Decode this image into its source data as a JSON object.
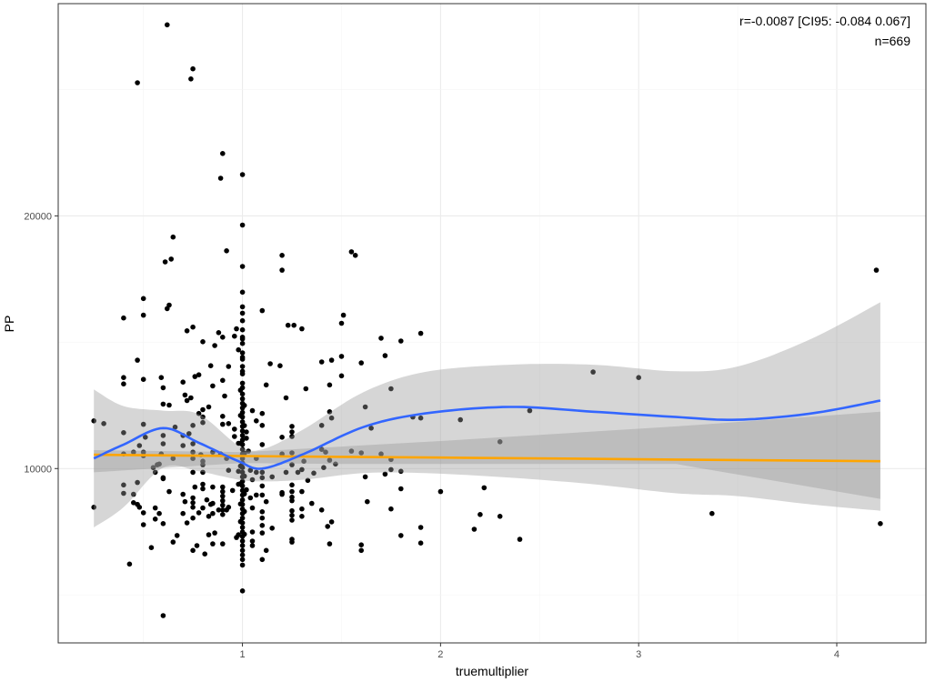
{
  "chart_data": {
    "type": "scatter",
    "xlabel": "truemultiplier",
    "ylabel": "PP",
    "xlim": [
      0.07,
      4.45
    ],
    "ylim": [
      3100,
      28400
    ],
    "x_ticks": [
      1,
      2,
      3,
      4
    ],
    "x_tick_labels": [
      "1",
      "2",
      "3",
      "4"
    ],
    "y_ticks": [
      10000,
      20000
    ],
    "y_tick_labels": [
      "10000",
      "20000"
    ],
    "grid": true,
    "annotations": [
      "r=-0.0087 [CI95: -0.084 0.067]",
      "n=669"
    ],
    "colors": {
      "points": "#000000",
      "loess": "#3366FF",
      "linear": "#FFA500",
      "ribbon": "#999999"
    },
    "points": [
      [
        0.62,
        27560
      ],
      [
        0.75,
        25820
      ],
      [
        0.74,
        25420
      ],
      [
        0.47,
        25270
      ],
      [
        0.9,
        22470
      ],
      [
        0.89,
        21490
      ],
      [
        1.0,
        21635
      ],
      [
        1.0,
        19635
      ],
      [
        0.65,
        19160
      ],
      [
        0.92,
        18620
      ],
      [
        0.61,
        18180
      ],
      [
        0.64,
        18290
      ],
      [
        1.0,
        18000
      ],
      [
        1.0,
        16980
      ],
      [
        0.5,
        16730
      ],
      [
        1.0,
        16400
      ],
      [
        0.63,
        16470
      ],
      [
        0.62,
        16330
      ],
      [
        1.2,
        18440
      ],
      [
        1.2,
        17850
      ],
      [
        1.55,
        18580
      ],
      [
        1.57,
        18440
      ],
      [
        1.1,
        16250
      ],
      [
        1.23,
        15670
      ],
      [
        1.26,
        15670
      ],
      [
        1.3,
        15530
      ],
      [
        1.51,
        16070
      ],
      [
        1.5,
        15750
      ],
      [
        1.7,
        15160
      ],
      [
        1.8,
        15050
      ],
      [
        1.9,
        15350
      ],
      [
        1.72,
        14470
      ],
      [
        1.14,
        14150
      ],
      [
        1.19,
        14070
      ],
      [
        1.4,
        14220
      ],
      [
        1.45,
        14290
      ],
      [
        1.5,
        14440
      ],
      [
        1.6,
        14180
      ],
      [
        1.5,
        13670
      ],
      [
        1.12,
        13310
      ],
      [
        1.32,
        13160
      ],
      [
        1.44,
        13310
      ],
      [
        1.22,
        12800
      ],
      [
        1.75,
        13160
      ],
      [
        1.62,
        12440
      ],
      [
        1.05,
        12290
      ],
      [
        1.1,
        12180
      ],
      [
        0.4,
        15960
      ],
      [
        0.5,
        16070
      ],
      [
        0.72,
        15450
      ],
      [
        0.75,
        15600
      ],
      [
        0.88,
        15380
      ],
      [
        0.9,
        15200
      ],
      [
        0.8,
        15020
      ],
      [
        0.86,
        14870
      ],
      [
        0.96,
        15240
      ],
      [
        0.97,
        15530
      ],
      [
        0.47,
        14290
      ],
      [
        0.84,
        14070
      ],
      [
        0.93,
        14040
      ],
      [
        0.4,
        13600
      ],
      [
        0.4,
        13350
      ],
      [
        0.5,
        13530
      ],
      [
        0.59,
        13600
      ],
      [
        0.6,
        13200
      ],
      [
        0.7,
        13420
      ],
      [
        0.76,
        13640
      ],
      [
        0.78,
        13710
      ],
      [
        0.85,
        13270
      ],
      [
        0.9,
        13490
      ],
      [
        0.71,
        12910
      ],
      [
        0.74,
        12800
      ],
      [
        0.72,
        12690
      ],
      [
        0.91,
        12870
      ],
      [
        0.6,
        12550
      ],
      [
        0.63,
        12510
      ],
      [
        0.8,
        12330
      ],
      [
        0.78,
        12180
      ],
      [
        0.83,
        12440
      ],
      [
        0.8,
        12040
      ],
      [
        0.8,
        11820
      ],
      [
        0.25,
        11890
      ],
      [
        0.3,
        11780
      ],
      [
        0.9,
        12070
      ],
      [
        0.9,
        11750
      ],
      [
        0.93,
        11780
      ],
      [
        0.5,
        11750
      ],
      [
        0.75,
        11710
      ],
      [
        0.4,
        11420
      ],
      [
        0.51,
        11240
      ],
      [
        0.6,
        11310
      ],
      [
        0.6,
        10980
      ],
      [
        0.66,
        11640
      ],
      [
        0.7,
        11310
      ],
      [
        0.73,
        11380
      ],
      [
        0.7,
        10910
      ],
      [
        0.75,
        10980
      ],
      [
        0.48,
        10910
      ],
      [
        0.4,
        10580
      ],
      [
        0.45,
        10650
      ],
      [
        0.5,
        10650
      ],
      [
        0.5,
        10510
      ],
      [
        0.59,
        10580
      ],
      [
        0.65,
        10400
      ],
      [
        0.75,
        10650
      ],
      [
        0.75,
        10400
      ],
      [
        0.79,
        10550
      ],
      [
        0.8,
        10290
      ],
      [
        0.85,
        10650
      ],
      [
        0.89,
        10580
      ],
      [
        0.92,
        10400
      ],
      [
        0.96,
        11560
      ],
      [
        0.96,
        11270
      ],
      [
        0.8,
        10150
      ],
      [
        0.8,
        9850
      ],
      [
        0.75,
        9850
      ],
      [
        0.55,
        10040
      ],
      [
        0.57,
        10150
      ],
      [
        0.58,
        10180
      ],
      [
        0.56,
        9850
      ],
      [
        0.6,
        9640
      ],
      [
        0.98,
        9890
      ],
      [
        0.93,
        9930
      ],
      [
        0.4,
        9350
      ],
      [
        0.4,
        9020
      ],
      [
        0.47,
        9450
      ],
      [
        0.45,
        8980
      ],
      [
        0.45,
        8650
      ],
      [
        0.47,
        8580
      ],
      [
        0.48,
        8470
      ],
      [
        0.5,
        8250
      ],
      [
        0.5,
        7780
      ],
      [
        0.56,
        8440
      ],
      [
        0.56,
        8000
      ],
      [
        0.58,
        8220
      ],
      [
        0.6,
        7820
      ],
      [
        0.6,
        9600
      ],
      [
        0.63,
        9090
      ],
      [
        0.7,
        8980
      ],
      [
        0.71,
        8690
      ],
      [
        0.7,
        8220
      ],
      [
        0.72,
        7850
      ],
      [
        0.75,
        8840
      ],
      [
        0.75,
        8650
      ],
      [
        0.75,
        8470
      ],
      [
        0.75,
        8040
      ],
      [
        0.76,
        9270
      ],
      [
        0.8,
        9380
      ],
      [
        0.8,
        9200
      ],
      [
        0.85,
        9270
      ],
      [
        0.82,
        8760
      ],
      [
        0.84,
        8580
      ],
      [
        0.85,
        8620
      ],
      [
        0.8,
        8440
      ],
      [
        0.78,
        8250
      ],
      [
        0.83,
        8110
      ],
      [
        0.85,
        8220
      ],
      [
        0.9,
        9270
      ],
      [
        0.9,
        9090
      ],
      [
        0.9,
        8910
      ],
      [
        0.9,
        8730
      ],
      [
        0.9,
        8550
      ],
      [
        0.9,
        8360
      ],
      [
        0.9,
        8180
      ],
      [
        0.88,
        8360
      ],
      [
        0.92,
        8360
      ],
      [
        0.93,
        8470
      ],
      [
        0.95,
        9130
      ],
      [
        0.98,
        9380
      ],
      [
        0.67,
        7350
      ],
      [
        0.65,
        7090
      ],
      [
        0.54,
        6870
      ],
      [
        0.75,
        6760
      ],
      [
        0.77,
        6950
      ],
      [
        0.81,
        6620
      ],
      [
        0.83,
        7380
      ],
      [
        0.86,
        7450
      ],
      [
        0.85,
        7020
      ],
      [
        0.9,
        7020
      ],
      [
        0.25,
        8470
      ],
      [
        0.43,
        6220
      ],
      [
        0.6,
        4180
      ],
      [
        1.0,
        5160
      ],
      [
        1.0,
        6180
      ],
      [
        0.97,
        7270
      ],
      [
        0.98,
        7380
      ],
      [
        1.44,
        12250
      ],
      [
        1.45,
        12000
      ],
      [
        1.07,
        11890
      ],
      [
        1.1,
        11710
      ],
      [
        1.25,
        11670
      ],
      [
        1.25,
        11450
      ],
      [
        1.25,
        11270
      ],
      [
        1.2,
        11240
      ],
      [
        1.4,
        11710
      ],
      [
        1.65,
        11600
      ],
      [
        1.86,
        12040
      ],
      [
        1.9,
        12000
      ],
      [
        2.1,
        11930
      ],
      [
        1.02,
        11450
      ],
      [
        1.02,
        11200
      ],
      [
        1.1,
        10950
      ],
      [
        1.03,
        10690
      ],
      [
        1.2,
        10580
      ],
      [
        1.25,
        10620
      ],
      [
        1.4,
        10760
      ],
      [
        1.42,
        10650
      ],
      [
        1.55,
        10690
      ],
      [
        1.6,
        10620
      ],
      [
        1.7,
        10580
      ],
      [
        1.07,
        10400
      ],
      [
        1.75,
        10360
      ],
      [
        1.31,
        10290
      ],
      [
        1.25,
        10150
      ],
      [
        1.44,
        10330
      ],
      [
        1.47,
        10180
      ],
      [
        1.04,
        9930
      ],
      [
        1.07,
        9850
      ],
      [
        1.1,
        9850
      ],
      [
        1.22,
        9850
      ],
      [
        1.28,
        9850
      ],
      [
        1.3,
        9960
      ],
      [
        1.41,
        10040
      ],
      [
        1.15,
        9670
      ],
      [
        1.1,
        9640
      ],
      [
        1.36,
        9820
      ],
      [
        1.05,
        9560
      ],
      [
        1.33,
        9530
      ],
      [
        1.25,
        9350
      ],
      [
        1.62,
        9670
      ],
      [
        1.72,
        9780
      ],
      [
        1.75,
        9960
      ],
      [
        1.8,
        9890
      ],
      [
        1.8,
        9200
      ],
      [
        2.0,
        9090
      ],
      [
        1.1,
        9310
      ],
      [
        1.02,
        9160
      ],
      [
        1.2,
        9050
      ],
      [
        1.2,
        8980
      ],
      [
        1.07,
        8950
      ],
      [
        1.1,
        8950
      ],
      [
        1.25,
        9090
      ],
      [
        1.25,
        8870
      ],
      [
        1.25,
        8730
      ],
      [
        1.3,
        9090
      ],
      [
        1.04,
        8840
      ],
      [
        1.12,
        8690
      ],
      [
        1.35,
        8620
      ],
      [
        1.63,
        8690
      ],
      [
        1.75,
        8400
      ],
      [
        1.05,
        8440
      ],
      [
        1.1,
        8290
      ],
      [
        1.1,
        8040
      ],
      [
        1.1,
        7750
      ],
      [
        1.1,
        7450
      ],
      [
        1.25,
        8330
      ],
      [
        1.25,
        8150
      ],
      [
        1.25,
        7960
      ],
      [
        1.3,
        8400
      ],
      [
        1.3,
        8110
      ],
      [
        1.4,
        8360
      ],
      [
        1.15,
        7640
      ],
      [
        1.43,
        7710
      ],
      [
        1.45,
        7890
      ],
      [
        1.05,
        7490
      ],
      [
        1.05,
        7130
      ],
      [
        1.05,
        6950
      ],
      [
        1.25,
        7200
      ],
      [
        1.25,
        7090
      ],
      [
        1.44,
        7020
      ],
      [
        1.6,
        6980
      ],
      [
        1.6,
        6760
      ],
      [
        1.8,
        7350
      ],
      [
        1.9,
        7670
      ],
      [
        1.9,
        7050
      ],
      [
        1.12,
        6760
      ],
      [
        1.1,
        6400
      ],
      [
        2.77,
        13820
      ],
      [
        3.0,
        13600
      ],
      [
        2.45,
        12290
      ],
      [
        2.3,
        11060
      ],
      [
        2.22,
        9240
      ],
      [
        2.2,
        8180
      ],
      [
        2.3,
        8110
      ],
      [
        2.17,
        7600
      ],
      [
        2.4,
        7200
      ],
      [
        4.2,
        17850
      ],
      [
        3.37,
        8220
      ],
      [
        4.22,
        7820
      ],
      [
        1.0,
        16150
      ],
      [
        1.0,
        15850
      ],
      [
        1.0,
        15490
      ],
      [
        1.0,
        15200
      ],
      [
        1.0,
        15130
      ],
      [
        1.0,
        14950
      ],
      [
        1.0,
        14580
      ],
      [
        1.0,
        14400
      ],
      [
        1.0,
        14330
      ],
      [
        1.0,
        14040
      ],
      [
        1.0,
        13850
      ],
      [
        1.0,
        13750
      ],
      [
        1.0,
        13380
      ],
      [
        1.0,
        13200
      ],
      [
        1.0,
        12950
      ],
      [
        1.0,
        12760
      ],
      [
        1.0,
        12580
      ],
      [
        1.0,
        12400
      ],
      [
        1.0,
        12220
      ],
      [
        1.0,
        12040
      ],
      [
        1.0,
        11850
      ],
      [
        1.0,
        11670
      ],
      [
        1.0,
        11490
      ],
      [
        1.0,
        11310
      ],
      [
        1.0,
        11130
      ],
      [
        1.0,
        10950
      ],
      [
        1.0,
        10760
      ],
      [
        1.0,
        10580
      ],
      [
        1.0,
        10400
      ],
      [
        1.0,
        10220
      ],
      [
        1.0,
        10040
      ],
      [
        1.0,
        9850
      ],
      [
        1.0,
        9670
      ],
      [
        1.0,
        9490
      ],
      [
        1.0,
        9310
      ],
      [
        1.0,
        9130
      ],
      [
        1.0,
        8950
      ],
      [
        1.0,
        8760
      ],
      [
        1.0,
        8580
      ],
      [
        1.0,
        8400
      ],
      [
        1.0,
        8220
      ],
      [
        1.0,
        8040
      ],
      [
        1.0,
        7850
      ],
      [
        1.0,
        7670
      ],
      [
        1.0,
        7490
      ],
      [
        1.0,
        7310
      ],
      [
        1.0,
        7130
      ],
      [
        1.0,
        6950
      ],
      [
        1.0,
        6760
      ],
      [
        1.0,
        6580
      ],
      [
        1.0,
        6400
      ],
      [
        0.99,
        12100
      ],
      [
        1.01,
        11700
      ],
      [
        0.99,
        11000
      ],
      [
        1.01,
        10600
      ],
      [
        0.99,
        10100
      ],
      [
        1.01,
        9700
      ],
      [
        0.99,
        9400
      ],
      [
        1.01,
        9000
      ],
      [
        0.99,
        8600
      ],
      [
        1.01,
        8300
      ],
      [
        0.99,
        7900
      ],
      [
        1.01,
        7400
      ],
      [
        0.99,
        13100
      ],
      [
        1.01,
        12500
      ],
      [
        0.98,
        14700
      ],
      [
        0.98,
        11000
      ]
    ],
    "loess": {
      "x": [
        0.25,
        0.4,
        0.6,
        0.78,
        0.98,
        1.1,
        1.31,
        1.61,
        1.92,
        2.35,
        2.77,
        3.19,
        3.5,
        3.87,
        4.22
      ],
      "fit": [
        10400,
        10950,
        11600,
        11020,
        10290,
        10000,
        10580,
        11640,
        12180,
        12440,
        12250,
        12040,
        11930,
        12180,
        12690
      ],
      "lower": [
        7670,
        8470,
        10040,
        9890,
        9560,
        9490,
        9560,
        9820,
        9820,
        9640,
        9380,
        9020,
        8910,
        8580,
        8330
      ],
      "upper": [
        13130,
        12470,
        12290,
        12150,
        10910,
        10760,
        11560,
        13020,
        13820,
        14110,
        14110,
        13850,
        14040,
        15130,
        16580
      ]
    },
    "linear": {
      "x": [
        0.25,
        1.0,
        1.5,
        2.0,
        3.19,
        4.22
      ],
      "fit": [
        10545,
        10497,
        10465,
        10433,
        10357,
        10290
      ],
      "lower": [
        9850,
        10220,
        10180,
        10180,
        10180,
        8800
      ],
      "upper": [
        10730,
        10650,
        10870,
        11090,
        11670,
        12250
      ]
    }
  }
}
